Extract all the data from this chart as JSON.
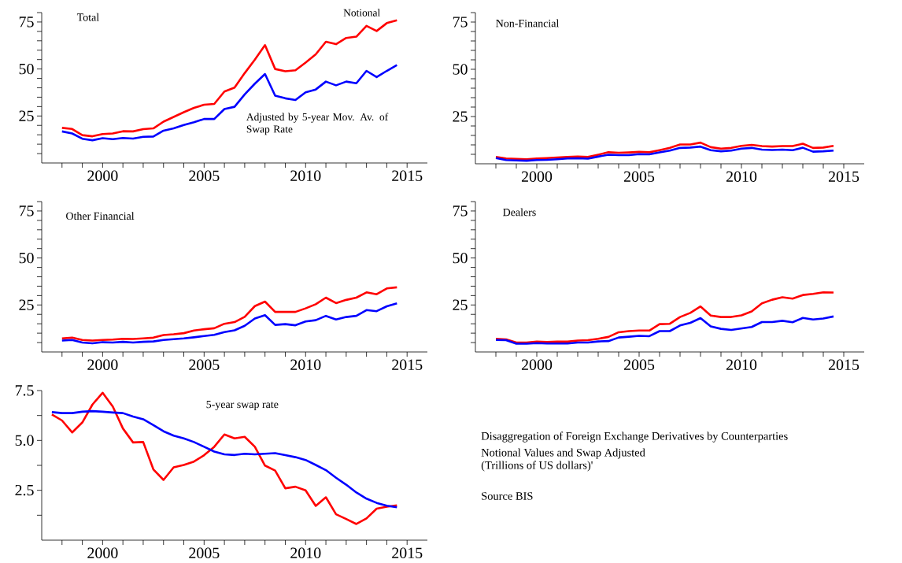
{
  "chart_data": [
    {
      "type": "line",
      "title": "Total",
      "xlim": [
        1997,
        2016
      ],
      "ylim": [
        0,
        80
      ],
      "xticks": [
        {
          "value": 1998,
          "label": null
        },
        {
          "value": 1999,
          "label": null
        },
        2000,
        {
          "value": 2001,
          "label": null
        },
        {
          "value": 2002,
          "label": null
        },
        {
          "value": 2003,
          "label": null
        },
        {
          "value": 2004,
          "label": null
        },
        2005,
        {
          "value": 2006,
          "label": null
        },
        {
          "value": 2007,
          "label": null
        },
        {
          "value": 2008,
          "label": null
        },
        {
          "value": 2009,
          "label": null
        },
        2010,
        {
          "value": 2011,
          "label": null
        },
        {
          "value": 2012,
          "label": null
        },
        {
          "value": 2013,
          "label": null
        },
        {
          "value": 2014,
          "label": null
        },
        2015
      ],
      "yticks": [
        {
          "value": 5,
          "label": null
        },
        {
          "value": 10,
          "label": null
        },
        {
          "value": 15,
          "label": null
        },
        {
          "value": 20,
          "label": null
        },
        25,
        {
          "value": 30,
          "label": null
        },
        {
          "value": 35,
          "label": null
        },
        {
          "value": 40,
          "label": null
        },
        {
          "value": 45,
          "label": null
        },
        50,
        {
          "value": 55,
          "label": null
        },
        {
          "value": 60,
          "label": null
        },
        {
          "value": 65,
          "label": null
        },
        {
          "value": 70,
          "label": null
        },
        75,
        {
          "value": 80,
          "label": null
        }
      ],
      "x": [
        1998,
        1998.5,
        1999,
        1999.5,
        2000,
        2000.5,
        2001,
        2001.5,
        2002,
        2002.5,
        2003,
        2003.5,
        2004,
        2004.5,
        2005,
        2005.5,
        2006,
        2006.5,
        2007,
        2007.5,
        2008,
        2008.5,
        2009,
        2009.5,
        2010,
        2010.5,
        2011,
        2011.5,
        2012,
        2012.5,
        2013,
        2013.5,
        2014,
        2014.5
      ],
      "series": [
        {
          "name": "Notional",
          "color": "#ff0000",
          "values": [
            18.7,
            18.1,
            14.8,
            14.2,
            15.4,
            15.7,
            16.9,
            16.8,
            18.0,
            18.4,
            22.0,
            24.5,
            27.0,
            29.3,
            31.0,
            31.4,
            38.0,
            40.1,
            47.8,
            55.0,
            62.7,
            50.0,
            48.8,
            49.3,
            53.4,
            57.8,
            64.5,
            63.2,
            66.5,
            67.2,
            72.9,
            70.2,
            74.4,
            75.9
          ]
        },
        {
          "name": "Adjusted by 5-year Mov. Av. of Swap Rate",
          "color": "#0000ff",
          "values": [
            16.8,
            15.7,
            12.9,
            12.1,
            13.2,
            12.7,
            13.3,
            13.0,
            13.9,
            14.1,
            17.2,
            18.4,
            20.2,
            21.7,
            23.4,
            23.4,
            28.7,
            29.9,
            36.5,
            42.2,
            47.3,
            35.8,
            34.4,
            33.5,
            37.6,
            39.1,
            43.3,
            41.3,
            43.3,
            42.4,
            49.0,
            45.7,
            49.0,
            52.1
          ]
        }
      ]
    },
    {
      "type": "line",
      "title": "Non-Financial",
      "xlim": [
        1997,
        2016
      ],
      "ylim": [
        0,
        80
      ],
      "xticks": [
        {
          "value": 1998,
          "label": null
        },
        {
          "value": 1999,
          "label": null
        },
        2000,
        {
          "value": 2001,
          "label": null
        },
        {
          "value": 2002,
          "label": null
        },
        {
          "value": 2003,
          "label": null
        },
        {
          "value": 2004,
          "label": null
        },
        2005,
        {
          "value": 2006,
          "label": null
        },
        {
          "value": 2007,
          "label": null
        },
        {
          "value": 2008,
          "label": null
        },
        {
          "value": 2009,
          "label": null
        },
        2010,
        {
          "value": 2011,
          "label": null
        },
        {
          "value": 2012,
          "label": null
        },
        {
          "value": 2013,
          "label": null
        },
        {
          "value": 2014,
          "label": null
        },
        2015
      ],
      "yticks": [
        {
          "value": 5,
          "label": null
        },
        {
          "value": 10,
          "label": null
        },
        {
          "value": 15,
          "label": null
        },
        {
          "value": 20,
          "label": null
        },
        25,
        {
          "value": 30,
          "label": null
        },
        {
          "value": 35,
          "label": null
        },
        {
          "value": 40,
          "label": null
        },
        {
          "value": 45,
          "label": null
        },
        50,
        {
          "value": 55,
          "label": null
        },
        {
          "value": 60,
          "label": null
        },
        {
          "value": 65,
          "label": null
        },
        {
          "value": 70,
          "label": null
        },
        75,
        {
          "value": 80,
          "label": null
        }
      ],
      "x": [
        1998,
        1998.5,
        1999,
        1999.5,
        2000,
        2000.5,
        2001,
        2001.5,
        2002,
        2002.5,
        2003,
        2003.5,
        2004,
        2004.5,
        2005,
        2005.5,
        2006,
        2006.5,
        2007,
        2007.5,
        2008,
        2008.5,
        2009,
        2009.5,
        2010,
        2010.5,
        2011,
        2011.5,
        2012,
        2012.5,
        2013,
        2013.5,
        2014,
        2014.5
      ],
      "series": [
        {
          "color": "#ff0000",
          "values": [
            3.6,
            2.8,
            2.6,
            2.4,
            2.8,
            3.0,
            3.3,
            3.6,
            3.8,
            3.6,
            4.8,
            6.1,
            5.8,
            6.0,
            6.3,
            6.1,
            7.2,
            8.4,
            10.2,
            10.2,
            11.2,
            8.8,
            8.0,
            8.4,
            9.5,
            10.0,
            9.4,
            9.1,
            9.4,
            9.4,
            10.6,
            8.4,
            8.6,
            9.5
          ]
        },
        {
          "color": "#0000ff",
          "values": [
            3.0,
            2.0,
            1.8,
            1.6,
            2.0,
            2.1,
            2.4,
            2.8,
            2.9,
            2.7,
            3.8,
            4.8,
            4.6,
            4.6,
            5.1,
            5.0,
            6.0,
            7.0,
            8.4,
            8.6,
            9.1,
            7.2,
            6.6,
            7.0,
            8.0,
            8.4,
            7.5,
            7.3,
            7.5,
            7.2,
            8.5,
            6.4,
            6.6,
            7.0
          ]
        }
      ]
    },
    {
      "type": "line",
      "title": "Other Financial",
      "xlim": [
        1997,
        2016
      ],
      "ylim": [
        0,
        80
      ],
      "xticks": [
        {
          "value": 1998,
          "label": null
        },
        {
          "value": 1999,
          "label": null
        },
        2000,
        {
          "value": 2001,
          "label": null
        },
        {
          "value": 2002,
          "label": null
        },
        {
          "value": 2003,
          "label": null
        },
        {
          "value": 2004,
          "label": null
        },
        2005,
        {
          "value": 2006,
          "label": null
        },
        {
          "value": 2007,
          "label": null
        },
        {
          "value": 2008,
          "label": null
        },
        {
          "value": 2009,
          "label": null
        },
        2010,
        {
          "value": 2011,
          "label": null
        },
        {
          "value": 2012,
          "label": null
        },
        {
          "value": 2013,
          "label": null
        },
        {
          "value": 2014,
          "label": null
        },
        2015
      ],
      "yticks": [
        {
          "value": 5,
          "label": null
        },
        {
          "value": 10,
          "label": null
        },
        {
          "value": 15,
          "label": null
        },
        {
          "value": 20,
          "label": null
        },
        25,
        {
          "value": 30,
          "label": null
        },
        {
          "value": 35,
          "label": null
        },
        {
          "value": 40,
          "label": null
        },
        {
          "value": 45,
          "label": null
        },
        50,
        {
          "value": 55,
          "label": null
        },
        {
          "value": 60,
          "label": null
        },
        {
          "value": 65,
          "label": null
        },
        {
          "value": 70,
          "label": null
        },
        75,
        {
          "value": 80,
          "label": null
        }
      ],
      "x": [
        1998,
        1998.5,
        1999,
        1999.5,
        2000,
        2000.5,
        2001,
        2001.5,
        2002,
        2002.5,
        2003,
        2003.5,
        2004,
        2004.5,
        2005,
        2005.5,
        2006,
        2006.5,
        2007,
        2007.5,
        2008,
        2008.5,
        2009,
        2009.5,
        2010,
        2010.5,
        2011,
        2011.5,
        2012,
        2012.5,
        2013,
        2013.5,
        2014,
        2014.5
      ],
      "series": [
        {
          "color": "#ff0000",
          "values": [
            7.2,
            7.6,
            6.4,
            6.1,
            6.4,
            6.6,
            7.0,
            6.9,
            7.2,
            7.6,
            9.0,
            9.4,
            10.0,
            11.4,
            12.1,
            12.6,
            15.0,
            15.9,
            18.7,
            24.4,
            26.8,
            21.3,
            21.3,
            21.3,
            23.2,
            25.4,
            28.9,
            26.0,
            27.7,
            28.9,
            31.7,
            30.7,
            33.8,
            34.4
          ]
        },
        {
          "color": "#0000ff",
          "values": [
            6.1,
            6.4,
            5.0,
            4.6,
            5.2,
            5.0,
            5.4,
            5.0,
            5.4,
            5.6,
            6.4,
            6.8,
            7.2,
            7.8,
            8.5,
            9.1,
            10.6,
            11.5,
            13.9,
            17.8,
            19.6,
            14.4,
            14.8,
            14.2,
            16.2,
            16.9,
            19.2,
            17.3,
            18.6,
            19.2,
            22.3,
            21.7,
            24.3,
            25.9
          ]
        }
      ]
    },
    {
      "type": "line",
      "title": "Dealers",
      "xlim": [
        1997,
        2016
      ],
      "ylim": [
        0,
        80
      ],
      "xticks": [
        {
          "value": 1998,
          "label": null
        },
        {
          "value": 1999,
          "label": null
        },
        2000,
        {
          "value": 2001,
          "label": null
        },
        {
          "value": 2002,
          "label": null
        },
        {
          "value": 2003,
          "label": null
        },
        {
          "value": 2004,
          "label": null
        },
        2005,
        {
          "value": 2006,
          "label": null
        },
        {
          "value": 2007,
          "label": null
        },
        {
          "value": 2008,
          "label": null
        },
        {
          "value": 2009,
          "label": null
        },
        2010,
        {
          "value": 2011,
          "label": null
        },
        {
          "value": 2012,
          "label": null
        },
        {
          "value": 2013,
          "label": null
        },
        {
          "value": 2014,
          "label": null
        },
        2015
      ],
      "yticks": [
        {
          "value": 5,
          "label": null
        },
        {
          "value": 10,
          "label": null
        },
        {
          "value": 15,
          "label": null
        },
        {
          "value": 20,
          "label": null
        },
        25,
        {
          "value": 30,
          "label": null
        },
        {
          "value": 35,
          "label": null
        },
        {
          "value": 40,
          "label": null
        },
        {
          "value": 45,
          "label": null
        },
        50,
        {
          "value": 55,
          "label": null
        },
        {
          "value": 60,
          "label": null
        },
        {
          "value": 65,
          "label": null
        },
        {
          "value": 70,
          "label": null
        },
        75,
        {
          "value": 80,
          "label": null
        }
      ],
      "x": [
        1998,
        1998.5,
        1999,
        1999.5,
        2000,
        2000.5,
        2001,
        2001.5,
        2002,
        2002.5,
        2003,
        2003.5,
        2004,
        2004.5,
        2005,
        2005.5,
        2006,
        2006.5,
        2007,
        2007.5,
        2008,
        2008.5,
        2009,
        2009.5,
        2010,
        2010.5,
        2011,
        2011.5,
        2012,
        2012.5,
        2013,
        2013.5,
        2014,
        2014.5
      ],
      "series": [
        {
          "color": "#ff0000",
          "values": [
            7.0,
            6.7,
            5.0,
            5.0,
            5.5,
            5.3,
            5.5,
            5.5,
            6.1,
            6.3,
            7.0,
            8.0,
            10.5,
            11.1,
            11.4,
            11.4,
            14.8,
            15.0,
            18.6,
            20.8,
            24.2,
            19.4,
            18.6,
            18.6,
            19.5,
            21.6,
            25.9,
            27.8,
            29.1,
            28.4,
            30.3,
            30.9,
            31.7,
            31.6
          ]
        },
        {
          "color": "#0000ff",
          "values": [
            6.4,
            6.3,
            4.4,
            4.4,
            4.7,
            4.5,
            4.5,
            4.5,
            5.0,
            5.0,
            5.6,
            5.8,
            7.7,
            8.1,
            8.6,
            8.4,
            11.1,
            11.1,
            14.1,
            15.5,
            18.0,
            13.6,
            12.3,
            11.7,
            12.5,
            13.3,
            15.9,
            15.9,
            16.6,
            15.8,
            18.1,
            17.3,
            17.8,
            18.9
          ]
        }
      ]
    },
    {
      "type": "line",
      "title": "5-year swap rate",
      "xlim": [
        1997,
        2016
      ],
      "ylim": [
        0,
        7.5
      ],
      "xticks": [
        {
          "value": 1998,
          "label": null
        },
        {
          "value": 1999,
          "label": null
        },
        2000,
        {
          "value": 2001,
          "label": null
        },
        {
          "value": 2002,
          "label": null
        },
        {
          "value": 2003,
          "label": null
        },
        {
          "value": 2004,
          "label": null
        },
        2005,
        {
          "value": 2006,
          "label": null
        },
        {
          "value": 2007,
          "label": null
        },
        {
          "value": 2008,
          "label": null
        },
        {
          "value": 2009,
          "label": null
        },
        2010,
        {
          "value": 2011,
          "label": null
        },
        {
          "value": 2012,
          "label": null
        },
        {
          "value": 2013,
          "label": null
        },
        {
          "value": 2014,
          "label": null
        },
        2015
      ],
      "yticks": [
        {
          "value": 1.25,
          "label": null
        },
        2.5,
        {
          "value": 3.75,
          "label": null
        },
        {
          "value": 5,
          "label": "5.0"
        },
        {
          "value": 6.25,
          "label": null
        },
        7.5
      ],
      "x": [
        1997.5,
        1998,
        1998.5,
        1999,
        1999.5,
        2000,
        2000.5,
        2001,
        2001.5,
        2002,
        2002.5,
        2003,
        2003.5,
        2004,
        2004.5,
        2005,
        2005.5,
        2006,
        2006.5,
        2007,
        2007.5,
        2008,
        2008.5,
        2009,
        2009.5,
        2010,
        2010.5,
        2011,
        2011.5,
        2012,
        2012.5,
        2013,
        2013.5,
        2014,
        2014.5
      ],
      "series": [
        {
          "color": "#ff0000",
          "values": [
            6.3,
            6.0,
            5.4,
            5.9,
            6.8,
            7.39,
            6.7,
            5.6,
            4.9,
            4.92,
            3.55,
            3.02,
            3.65,
            3.77,
            3.94,
            4.26,
            4.68,
            5.3,
            5.1,
            5.18,
            4.68,
            3.74,
            3.49,
            2.6,
            2.68,
            2.5,
            1.72,
            2.15,
            1.3,
            1.06,
            0.81,
            1.09,
            1.58,
            1.68,
            1.75
          ]
        },
        {
          "color": "#0000ff",
          "values": [
            6.42,
            6.37,
            6.37,
            6.44,
            6.47,
            6.44,
            6.4,
            6.37,
            6.2,
            6.06,
            5.77,
            5.46,
            5.24,
            5.1,
            4.92,
            4.68,
            4.44,
            4.3,
            4.27,
            4.33,
            4.3,
            4.33,
            4.36,
            4.26,
            4.16,
            4.02,
            3.77,
            3.51,
            3.13,
            2.78,
            2.39,
            2.08,
            1.87,
            1.73,
            1.65
          ]
        }
      ]
    },
    {
      "type": "other",
      "annotations": [
        "Disaggregation of Foreign Exchange Derivatives by Counterparties",
        "Notional Values and Swap Adjusted",
        "(Trillions of US dollars)'",
        "Source BIS"
      ]
    }
  ]
}
